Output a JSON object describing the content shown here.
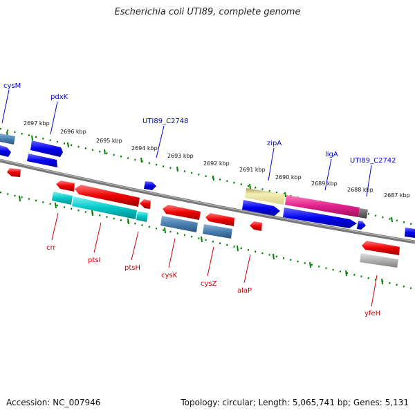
{
  "title": "Escherichia coli UTI89, complete genome",
  "footer": {
    "accession": "Accession: NC_007946",
    "topology": "Topology: circular; Length: 5,065,741 bp; Genes: 5,131"
  },
  "colors": {
    "backbone": "#808080",
    "ticks": "#008000",
    "forward_gene": "#0000ee",
    "reverse_gene": "#ee0000",
    "cds_steelblue": "#4a7fb0",
    "cds_cyan": "#00c8c8",
    "cds_khaki": "#e8e098",
    "cds_magenta": "#e0208a",
    "cds_gray": "#b0b0b0"
  },
  "scale_labels": [
    "2697 kbp",
    "2696 kbp",
    "2695 kbp",
    "2694 kbp",
    "2693 kbp",
    "2692 kbp",
    "2691 kbp",
    "2690 kbp",
    "2689 kbp",
    "2688 kbp",
    "2687 kbp"
  ],
  "forward_gene_labels": [
    "cysM",
    "pdxK",
    "UTI89_C2748",
    "zipA",
    "ligA",
    "UTI89_C2742"
  ],
  "reverse_gene_labels": [
    "crr",
    "ptsI",
    "ptsH",
    "cysK",
    "cysZ",
    "alaP",
    "yfeH"
  ]
}
